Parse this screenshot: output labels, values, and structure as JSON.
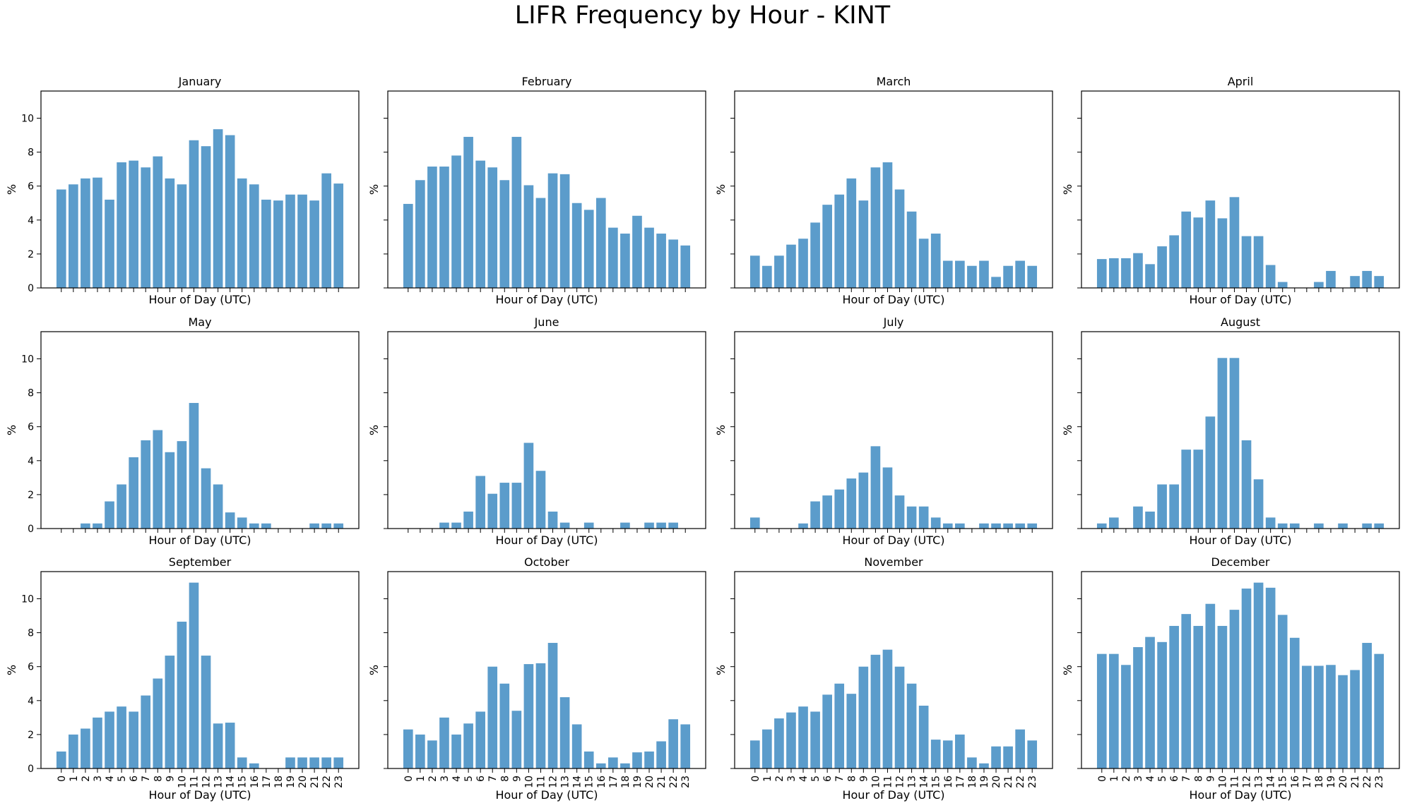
{
  "figure": {
    "title": "LIFR Frequency by Hour - KINT",
    "bar_color": "#5b9ccb"
  },
  "chart_data": [
    {
      "type": "bar",
      "title": "January",
      "xlabel": "Hour of Day (UTC)",
      "ylabel": "%",
      "ylim": [
        0,
        11.6
      ],
      "yticks": [
        0,
        2,
        4,
        6,
        8,
        10
      ],
      "categories": [
        "0",
        "1",
        "2",
        "3",
        "4",
        "5",
        "6",
        "7",
        "8",
        "9",
        "10",
        "11",
        "12",
        "13",
        "14",
        "15",
        "16",
        "17",
        "18",
        "19",
        "20",
        "21",
        "22",
        "23"
      ],
      "values": [
        5.8,
        6.1,
        6.45,
        6.5,
        5.2,
        7.4,
        7.5,
        7.1,
        7.75,
        6.45,
        6.1,
        8.7,
        8.35,
        9.35,
        9.0,
        6.45,
        6.1,
        5.2,
        5.15,
        5.5,
        5.5,
        5.15,
        6.75,
        6.15
      ]
    },
    {
      "type": "bar",
      "title": "February",
      "xlabel": "Hour of Day (UTC)",
      "ylabel": "%",
      "ylim": [
        0,
        11.6
      ],
      "yticks": [
        0,
        2,
        4,
        6,
        8,
        10
      ],
      "categories": [
        "0",
        "1",
        "2",
        "3",
        "4",
        "5",
        "6",
        "7",
        "8",
        "9",
        "10",
        "11",
        "12",
        "13",
        "14",
        "15",
        "16",
        "17",
        "18",
        "19",
        "20",
        "21",
        "22",
        "23"
      ],
      "values": [
        4.95,
        6.35,
        7.15,
        7.15,
        7.8,
        8.9,
        7.5,
        7.1,
        6.35,
        8.9,
        6.05,
        5.3,
        6.75,
        6.7,
        5.0,
        4.6,
        5.3,
        3.55,
        3.2,
        4.25,
        3.55,
        3.2,
        2.85,
        2.5
      ]
    },
    {
      "type": "bar",
      "title": "March",
      "xlabel": "Hour of Day (UTC)",
      "ylabel": "%",
      "ylim": [
        0,
        11.6
      ],
      "yticks": [
        0,
        2,
        4,
        6,
        8,
        10
      ],
      "categories": [
        "0",
        "1",
        "2",
        "3",
        "4",
        "5",
        "6",
        "7",
        "8",
        "9",
        "10",
        "11",
        "12",
        "13",
        "14",
        "15",
        "16",
        "17",
        "18",
        "19",
        "20",
        "21",
        "22",
        "23"
      ],
      "values": [
        1.9,
        1.3,
        1.9,
        2.55,
        2.9,
        3.85,
        4.9,
        5.5,
        6.45,
        5.15,
        7.1,
        7.4,
        5.8,
        4.5,
        2.9,
        3.2,
        1.6,
        1.6,
        1.3,
        1.6,
        0.65,
        1.3,
        1.6,
        1.3
      ]
    },
    {
      "type": "bar",
      "title": "April",
      "xlabel": "Hour of Day (UTC)",
      "ylabel": "%",
      "ylim": [
        0,
        11.6
      ],
      "yticks": [
        0,
        2,
        4,
        6,
        8,
        10
      ],
      "categories": [
        "0",
        "1",
        "2",
        "3",
        "4",
        "5",
        "6",
        "7",
        "8",
        "9",
        "10",
        "11",
        "12",
        "13",
        "14",
        "15",
        "16",
        "17",
        "18",
        "19",
        "20",
        "21",
        "22",
        "23"
      ],
      "values": [
        1.7,
        1.75,
        1.75,
        2.05,
        1.4,
        2.45,
        3.1,
        4.5,
        4.15,
        5.15,
        4.1,
        5.35,
        3.05,
        3.05,
        1.35,
        0.35,
        0,
        0,
        0.35,
        1.0,
        0,
        0.7,
        1.0,
        0.7
      ]
    },
    {
      "type": "bar",
      "title": "May",
      "xlabel": "Hour of Day (UTC)",
      "ylabel": "%",
      "ylim": [
        0,
        11.6
      ],
      "yticks": [
        0,
        2,
        4,
        6,
        8,
        10
      ],
      "categories": [
        "0",
        "1",
        "2",
        "3",
        "4",
        "5",
        "6",
        "7",
        "8",
        "9",
        "10",
        "11",
        "12",
        "13",
        "14",
        "15",
        "16",
        "17",
        "18",
        "19",
        "20",
        "21",
        "22",
        "23"
      ],
      "values": [
        0,
        0,
        0.3,
        0.3,
        1.6,
        2.6,
        4.2,
        5.2,
        5.8,
        4.5,
        5.15,
        7.4,
        3.55,
        2.6,
        0.95,
        0.65,
        0.3,
        0.3,
        0,
        0,
        0,
        0.3,
        0.3,
        0.3
      ]
    },
    {
      "type": "bar",
      "title": "June",
      "xlabel": "Hour of Day (UTC)",
      "ylabel": "%",
      "ylim": [
        0,
        11.6
      ],
      "yticks": [
        0,
        2,
        4,
        6,
        8,
        10
      ],
      "categories": [
        "0",
        "1",
        "2",
        "3",
        "4",
        "5",
        "6",
        "7",
        "8",
        "9",
        "10",
        "11",
        "12",
        "13",
        "14",
        "15",
        "16",
        "17",
        "18",
        "19",
        "20",
        "21",
        "22",
        "23"
      ],
      "values": [
        0,
        0,
        0,
        0.35,
        0.35,
        1.0,
        3.1,
        2.05,
        2.7,
        2.7,
        5.05,
        3.4,
        1.0,
        0.35,
        0,
        0.35,
        0,
        0,
        0.35,
        0,
        0.35,
        0.35,
        0.35,
        0
      ]
    },
    {
      "type": "bar",
      "title": "July",
      "xlabel": "Hour of Day (UTC)",
      "ylabel": "%",
      "ylim": [
        0,
        11.6
      ],
      "yticks": [
        0,
        2,
        4,
        6,
        8,
        10
      ],
      "categories": [
        "0",
        "1",
        "2",
        "3",
        "4",
        "5",
        "6",
        "7",
        "8",
        "9",
        "10",
        "11",
        "12",
        "13",
        "14",
        "15",
        "16",
        "17",
        "18",
        "19",
        "20",
        "21",
        "22",
        "23"
      ],
      "values": [
        0.65,
        0,
        0,
        0,
        0.3,
        1.6,
        1.95,
        2.3,
        2.95,
        3.3,
        4.85,
        3.6,
        1.95,
        1.3,
        1.3,
        0.65,
        0.3,
        0.3,
        0,
        0.3,
        0.3,
        0.3,
        0.3,
        0.3
      ]
    },
    {
      "type": "bar",
      "title": "August",
      "xlabel": "Hour of Day (UTC)",
      "ylabel": "%",
      "ylim": [
        0,
        11.6
      ],
      "yticks": [
        0,
        2,
        4,
        6,
        8,
        10
      ],
      "categories": [
        "0",
        "1",
        "2",
        "3",
        "4",
        "5",
        "6",
        "7",
        "8",
        "9",
        "10",
        "11",
        "12",
        "13",
        "14",
        "15",
        "16",
        "17",
        "18",
        "19",
        "20",
        "21",
        "22",
        "23"
      ],
      "values": [
        0.3,
        0.65,
        0,
        1.3,
        1.0,
        2.6,
        2.6,
        4.65,
        4.65,
        6.6,
        10.05,
        10.05,
        5.2,
        2.9,
        0.65,
        0.3,
        0.3,
        0,
        0.3,
        0,
        0.3,
        0,
        0.3,
        0.3
      ]
    },
    {
      "type": "bar",
      "title": "September",
      "xlabel": "Hour of Day (UTC)",
      "ylabel": "%",
      "ylim": [
        0,
        11.6
      ],
      "yticks": [
        0,
        2,
        4,
        6,
        8,
        10
      ],
      "categories": [
        "0",
        "1",
        "2",
        "3",
        "4",
        "5",
        "6",
        "7",
        "8",
        "9",
        "10",
        "11",
        "12",
        "13",
        "14",
        "15",
        "16",
        "17",
        "18",
        "19",
        "20",
        "21",
        "22",
        "23"
      ],
      "values": [
        1.0,
        2.0,
        2.35,
        3.0,
        3.35,
        3.65,
        3.35,
        4.3,
        5.3,
        6.65,
        8.65,
        10.95,
        6.65,
        2.65,
        2.7,
        0.65,
        0.3,
        0,
        0,
        0.65,
        0.65,
        0.65,
        0.65,
        0.65
      ]
    },
    {
      "type": "bar",
      "title": "October",
      "xlabel": "Hour of Day (UTC)",
      "ylabel": "%",
      "ylim": [
        0,
        11.6
      ],
      "yticks": [
        0,
        2,
        4,
        6,
        8,
        10
      ],
      "categories": [
        "0",
        "1",
        "2",
        "3",
        "4",
        "5",
        "6",
        "7",
        "8",
        "9",
        "10",
        "11",
        "12",
        "13",
        "14",
        "15",
        "16",
        "17",
        "18",
        "19",
        "20",
        "21",
        "22",
        "23"
      ],
      "values": [
        2.3,
        2.0,
        1.65,
        3.0,
        2.0,
        2.65,
        3.35,
        6.0,
        5.0,
        3.4,
        6.15,
        6.2,
        7.4,
        4.2,
        2.6,
        1.0,
        0.3,
        0.65,
        0.3,
        0.95,
        1.0,
        1.6,
        2.9,
        2.6
      ]
    },
    {
      "type": "bar",
      "title": "November",
      "xlabel": "Hour of Day (UTC)",
      "ylabel": "%",
      "ylim": [
        0,
        11.6
      ],
      "yticks": [
        0,
        2,
        4,
        6,
        8,
        10
      ],
      "categories": [
        "0",
        "1",
        "2",
        "3",
        "4",
        "5",
        "6",
        "7",
        "8",
        "9",
        "10",
        "11",
        "12",
        "13",
        "14",
        "15",
        "16",
        "17",
        "18",
        "19",
        "20",
        "21",
        "22",
        "23"
      ],
      "values": [
        1.65,
        2.3,
        2.95,
        3.3,
        3.65,
        3.35,
        4.35,
        5.0,
        4.4,
        6.0,
        6.7,
        7.0,
        6.0,
        5.0,
        3.7,
        1.7,
        1.65,
        2.0,
        0.65,
        0.3,
        1.3,
        1.3,
        2.3,
        1.65
      ]
    },
    {
      "type": "bar",
      "title": "December",
      "xlabel": "Hour of Day (UTC)",
      "ylabel": "%",
      "ylim": [
        0,
        11.6
      ],
      "yticks": [
        0,
        2,
        4,
        6,
        8,
        10
      ],
      "categories": [
        "0",
        "1",
        "2",
        "3",
        "4",
        "5",
        "6",
        "7",
        "8",
        "9",
        "10",
        "11",
        "12",
        "13",
        "14",
        "15",
        "16",
        "17",
        "18",
        "19",
        "20",
        "21",
        "22",
        "23"
      ],
      "values": [
        6.75,
        6.75,
        6.1,
        7.15,
        7.75,
        7.45,
        8.4,
        9.1,
        8.4,
        9.7,
        8.4,
        9.35,
        10.6,
        10.95,
        10.65,
        9.05,
        7.7,
        6.05,
        6.05,
        6.1,
        5.5,
        5.8,
        7.4,
        6.75
      ]
    }
  ]
}
